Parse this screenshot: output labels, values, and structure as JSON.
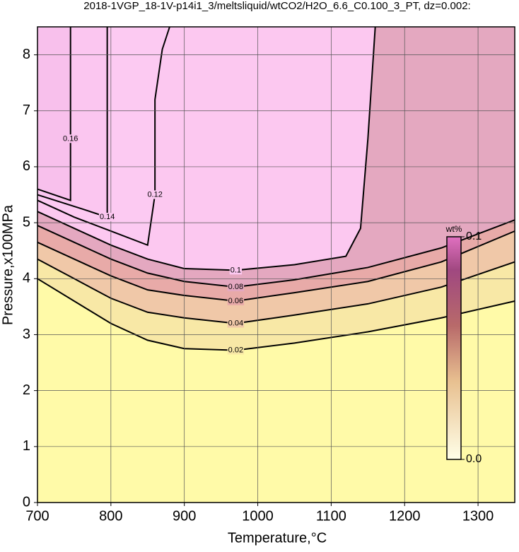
{
  "chart_data": {
    "type": "contour",
    "title": "2018-1VGP_18-1V-p14i1_3/meltsliquid/wtCO2/H2O_6.6_C0.100_3_PT, dz=0.002:",
    "x_label": "Temperature,°C",
    "y_label": "Pressure,x100MPa",
    "xlim": [
      700,
      1350
    ],
    "ylim": [
      0,
      8.5
    ],
    "xticks": [
      700,
      800,
      900,
      1000,
      1100,
      1200,
      1300
    ],
    "yticks": [
      0,
      1,
      2,
      3,
      4,
      5,
      6,
      7,
      8
    ],
    "grid": true,
    "colorbar": {
      "label": "wt%",
      "ticks": [
        {
          "value": 0,
          "label": "0.0"
        },
        {
          "value": 0.1,
          "label": "0.1"
        }
      ]
    },
    "series": [
      {
        "name": "0.02",
        "color": "#f8e8a6",
        "x": [
          700,
          750,
          800,
          850,
          900,
          970,
          1050,
          1150,
          1250,
          1350
        ],
        "y": [
          4.0,
          3.6,
          3.2,
          2.9,
          2.75,
          2.72,
          2.85,
          3.05,
          3.3,
          3.6
        ]
      },
      {
        "name": "0.04",
        "color": "#f0c8a8",
        "x": [
          700,
          750,
          800,
          850,
          900,
          970,
          1050,
          1150,
          1250,
          1350
        ],
        "y": [
          4.35,
          4.0,
          3.65,
          3.4,
          3.3,
          3.2,
          3.35,
          3.55,
          3.85,
          4.3
        ]
      },
      {
        "name": "0.06",
        "color": "#e8aaa8",
        "x": [
          700,
          750,
          800,
          850,
          900,
          970,
          1050,
          1150,
          1250,
          1350
        ],
        "y": [
          4.65,
          4.35,
          4.05,
          3.8,
          3.7,
          3.6,
          3.75,
          3.95,
          4.3,
          4.85
        ]
      },
      {
        "name": "0.08",
        "color": "#e4a8c0",
        "x": [
          700,
          750,
          800,
          850,
          900,
          970,
          1050,
          1150,
          1250,
          1350
        ],
        "y": [
          4.95,
          4.65,
          4.35,
          4.1,
          3.95,
          3.85,
          3.98,
          4.2,
          4.55,
          5.05
        ]
      },
      {
        "name": "0.1",
        "color": "#fcc8f0",
        "x": [
          700,
          750,
          800,
          850,
          900,
          970,
          1050,
          1120,
          1140,
          1150,
          1160
        ],
        "y": [
          5.2,
          4.9,
          4.6,
          4.35,
          4.18,
          4.15,
          4.25,
          4.4,
          4.9,
          6.5,
          8.5
        ]
      },
      {
        "name": "0.12",
        "color": "#fccaf2",
        "x": [
          700,
          750,
          800,
          850,
          860,
          860,
          870,
          880
        ],
        "y": [
          5.4,
          5.1,
          4.85,
          4.6,
          5.5,
          7.2,
          8.1,
          8.5
        ]
      },
      {
        "name": "0.14",
        "color": "#fbc6f0",
        "x": [
          700,
          760,
          795,
          795,
          795
        ],
        "y": [
          5.5,
          5.25,
          5.1,
          6.0,
          8.5
        ]
      },
      {
        "name": "0.16",
        "color": "#f8c0ec",
        "x": [
          700,
          745,
          745,
          745
        ],
        "y": [
          5.6,
          5.4,
          6.5,
          8.5
        ]
      }
    ]
  }
}
